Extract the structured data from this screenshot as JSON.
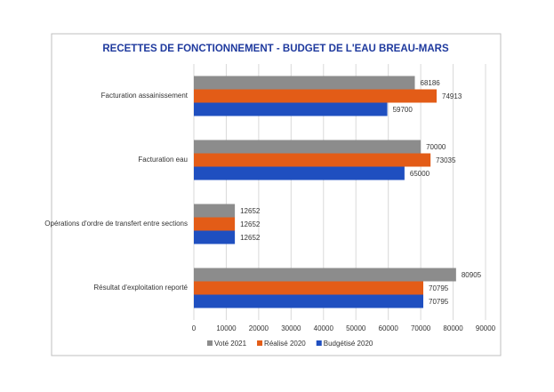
{
  "chart_data": {
    "type": "bar",
    "orientation": "horizontal",
    "title": "RECETTES DE FONCTIONNEMENT - BUDGET DE L'EAU BREAU-MARS",
    "categories": [
      "Facturation assainissement",
      "Facturation eau",
      "Opérations d'ordre de transfert entre sections",
      "Résultat d'exploitation reporté"
    ],
    "series": [
      {
        "name": "Voté 2021",
        "color": "#8c8c8c",
        "values": [
          68186,
          70000,
          12652,
          80905
        ]
      },
      {
        "name": "Réalisé 2020",
        "color": "#e35c17",
        "values": [
          74913,
          73035,
          12652,
          70795
        ]
      },
      {
        "name": "Budgétisé 2020",
        "color": "#1f4fc0",
        "values": [
          59700,
          65000,
          12652,
          70795
        ]
      }
    ],
    "xlim": [
      0,
      90000
    ],
    "xticks": [
      0,
      10000,
      20000,
      30000,
      40000,
      50000,
      60000,
      70000,
      80000,
      90000
    ],
    "grid": true,
    "legend": "bottom"
  }
}
